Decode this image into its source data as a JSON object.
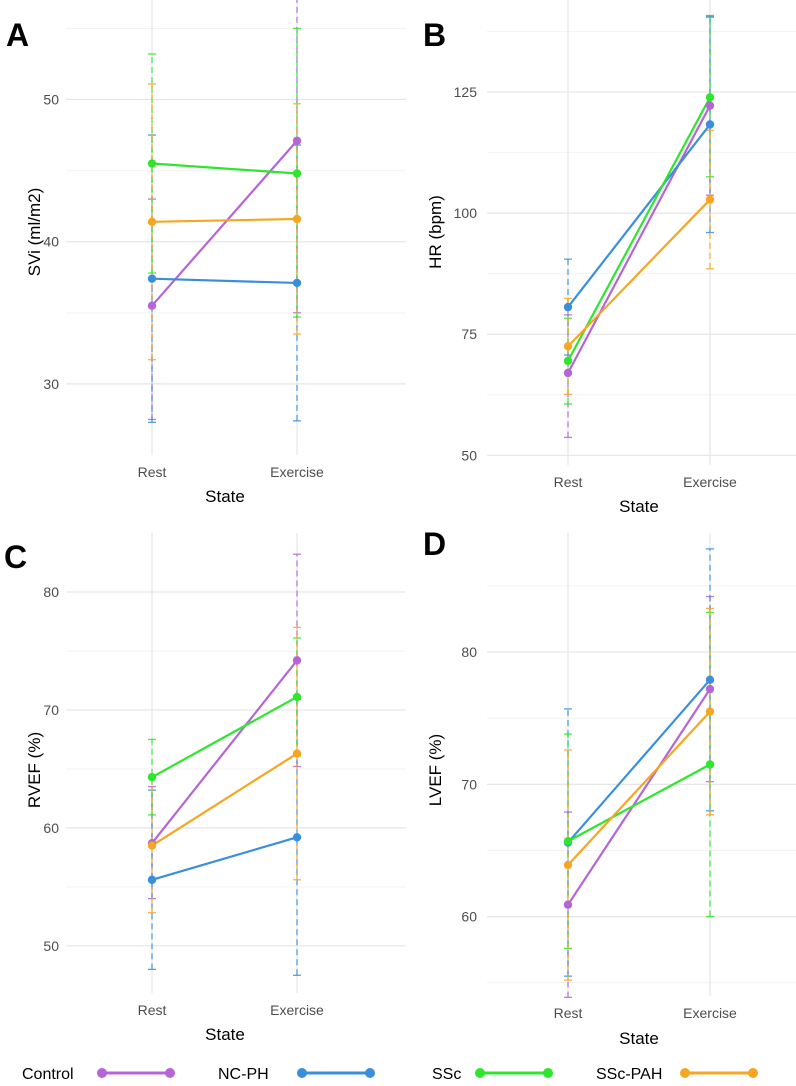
{
  "group_colors": {
    "Control": "#b565d8",
    "NC-PH": "#3a8fdc",
    "SSc": "#2ee62e",
    "SSc-PAH": "#f5a623"
  },
  "legend": {
    "items": [
      {
        "label": "Control",
        "color": "#b565d8"
      },
      {
        "label": "NC-PH",
        "color": "#3a8fdc"
      },
      {
        "label": "SSc",
        "color": "#2ee62e"
      },
      {
        "label": "SSc-PAH",
        "color": "#f5a623"
      }
    ]
  },
  "chart_data": [
    {
      "panel": "A",
      "type": "line",
      "xlabel": "State",
      "ylabel": "SVi (ml/m2)",
      "categories": [
        "Rest",
        "Exercise"
      ],
      "ylim": [
        25,
        57
      ],
      "yticks": [
        30,
        40,
        50
      ],
      "series": [
        {
          "name": "Control",
          "values": [
            35.5,
            47.1
          ],
          "err_low": [
            27.5,
            35.0
          ],
          "err_high": [
            43.0,
            57.3
          ]
        },
        {
          "name": "NC-PH",
          "values": [
            37.4,
            37.1
          ],
          "err_low": [
            27.3,
            27.4
          ],
          "err_high": [
            47.5,
            46.8
          ]
        },
        {
          "name": "SSc",
          "values": [
            45.5,
            44.8
          ],
          "err_low": [
            37.8,
            34.7
          ],
          "err_high": [
            53.2,
            55.0
          ]
        },
        {
          "name": "SSc-PAH",
          "values": [
            41.4,
            41.6
          ],
          "err_low": [
            31.7,
            33.5
          ],
          "err_high": [
            51.1,
            49.7
          ]
        }
      ]
    },
    {
      "panel": "B",
      "type": "line",
      "xlabel": "State",
      "ylabel": "HR (bpm)",
      "categories": [
        "Rest",
        "Exercise"
      ],
      "ylim": [
        48,
        144
      ],
      "yticks": [
        50,
        75,
        100,
        125
      ],
      "series": [
        {
          "name": "Control",
          "values": [
            67.0,
            122.2
          ],
          "err_low": [
            53.7,
            103.7
          ],
          "err_high": [
            79.0,
            140.8
          ]
        },
        {
          "name": "NC-PH",
          "values": [
            80.6,
            118.3
          ],
          "err_low": [
            70.7,
            96.0
          ],
          "err_high": [
            90.5,
            140.6
          ]
        },
        {
          "name": "SSc",
          "values": [
            69.5,
            123.9
          ],
          "err_low": [
            60.6,
            107.5
          ],
          "err_high": [
            78.3,
            140.4
          ]
        },
        {
          "name": "SSc-PAH",
          "values": [
            72.5,
            102.8
          ],
          "err_low": [
            62.6,
            88.5
          ],
          "err_high": [
            82.4,
            117.1
          ]
        }
      ]
    },
    {
      "panel": "C",
      "type": "line",
      "xlabel": "State",
      "ylabel": "RVEF (%)",
      "categories": [
        "Rest",
        "Exercise"
      ],
      "ylim": [
        46,
        85
      ],
      "yticks": [
        50,
        60,
        70,
        80
      ],
      "series": [
        {
          "name": "Control",
          "values": [
            58.7,
            74.2
          ],
          "err_low": [
            54.0,
            65.2
          ],
          "err_high": [
            63.5,
            83.2
          ]
        },
        {
          "name": "NC-PH",
          "values": [
            55.6,
            59.2
          ],
          "err_low": [
            48.0,
            47.5
          ],
          "err_high": [
            63.2,
            70.9
          ]
        },
        {
          "name": "SSc",
          "values": [
            64.3,
            71.1
          ],
          "err_low": [
            61.1,
            66.1
          ],
          "err_high": [
            67.5,
            76.1
          ]
        },
        {
          "name": "SSc-PAH",
          "values": [
            58.5,
            66.3
          ],
          "err_low": [
            52.8,
            55.6
          ],
          "err_high": [
            64.2,
            77.0
          ]
        }
      ]
    },
    {
      "panel": "D",
      "type": "line",
      "xlabel": "State",
      "ylabel": "LVEF (%)",
      "categories": [
        "Rest",
        "Exercise"
      ],
      "ylim": [
        54,
        89
      ],
      "yticks": [
        60,
        70,
        80
      ],
      "series": [
        {
          "name": "Control",
          "values": [
            60.9,
            77.2
          ],
          "err_low": [
            53.9,
            70.2
          ],
          "err_high": [
            67.9,
            84.2
          ]
        },
        {
          "name": "NC-PH",
          "values": [
            65.6,
            77.9
          ],
          "err_low": [
            55.5,
            68.0
          ],
          "err_high": [
            75.7,
            87.8
          ]
        },
        {
          "name": "SSc",
          "values": [
            65.7,
            71.5
          ],
          "err_low": [
            57.6,
            60.0
          ],
          "err_high": [
            73.8,
            83.0
          ]
        },
        {
          "name": "SSc-PAH",
          "values": [
            63.9,
            75.5
          ],
          "err_low": [
            55.2,
            67.7
          ],
          "err_high": [
            72.6,
            83.3
          ]
        }
      ]
    }
  ]
}
